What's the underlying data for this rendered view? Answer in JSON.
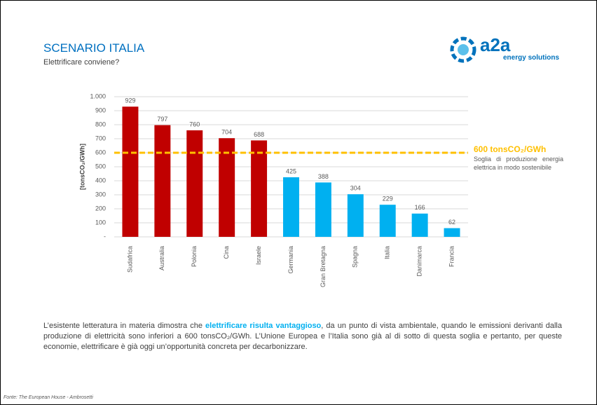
{
  "header": {
    "title": "SCENARIO ITALIA",
    "subtitle": "Elettrificare conviene?"
  },
  "logo": {
    "name": "a2a",
    "tagline": "energy solutions"
  },
  "chart_data": {
    "type": "bar",
    "y_label": "[tonsCO₂/GWh]",
    "categories": [
      "Sudafrica",
      "Australia",
      "Polonia",
      "Cina",
      "Israele",
      "Germania",
      "Gran Bretagna",
      "Spagna",
      "Italia",
      "Danimarca",
      "Francia"
    ],
    "values": [
      929,
      797,
      760,
      704,
      688,
      425,
      388,
      304,
      229,
      166,
      62
    ],
    "colors": [
      "#c00000",
      "#c00000",
      "#c00000",
      "#c00000",
      "#c00000",
      "#00b0f0",
      "#00b0f0",
      "#00b0f0",
      "#00b0f0",
      "#00b0f0",
      "#00b0f0"
    ],
    "ylim": [
      0,
      1000
    ],
    "yticks": [
      {
        "value": 0,
        "label": "-"
      },
      100,
      200,
      300,
      400,
      500,
      600,
      700,
      800,
      900,
      {
        "value": 1000,
        "label": "1.000"
      }
    ],
    "grid": true,
    "threshold": {
      "value": 600,
      "label": "600 tonsCO₂/GWh",
      "note": "Soglia di produzione energia elettrica in modo sostenibile",
      "color": "#ffc000"
    }
  },
  "body": {
    "before": "L’esistente letteratura in materia dimostra che ",
    "highlight": "elettrificare risulta vantaggioso",
    "after": ", da un punto di vista ambientale, quando le emissioni derivanti dalla produzione di elettricità sono inferiori a 600 tonsCO₂/GWh. L’Unione Europea e l’Italia sono già al di sotto di questa soglia e pertanto, per queste economie, elettrificare è già oggi un’opportunità concreta per decarbonizzare."
  },
  "source": "Fonte: The European House - Ambrosetti"
}
